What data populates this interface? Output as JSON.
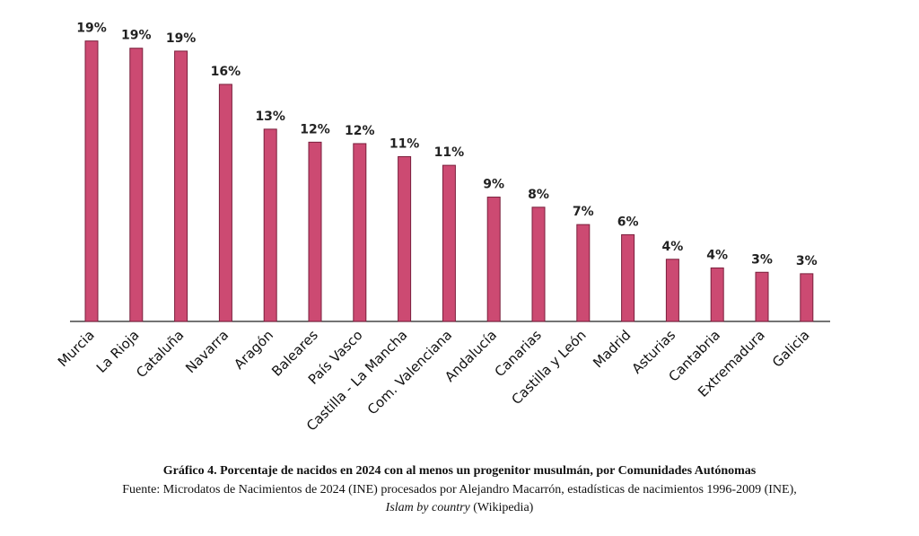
{
  "chart_data": {
    "type": "bar",
    "categories": [
      "Murcia",
      "La Rioja",
      "Cataluña",
      "Navarra",
      "Aragón",
      "Baleares",
      "País Vasco",
      "Castilla - La Mancha",
      "Com. Valenciana",
      "Andalucía",
      "Canarias",
      "Castilla y León",
      "Madrid",
      "Asturias",
      "Cantabria",
      "Extremadura",
      "Galicia"
    ],
    "values": [
      19.4,
      18.9,
      18.7,
      16.4,
      13.3,
      12.4,
      12.3,
      11.4,
      10.8,
      8.6,
      7.9,
      6.7,
      6.0,
      4.3,
      3.7,
      3.4,
      3.3
    ],
    "value_labels": [
      "19%",
      "19%",
      "19%",
      "16%",
      "13%",
      "12%",
      "12%",
      "11%",
      "11%",
      "9%",
      "8%",
      "7%",
      "6%",
      "4%",
      "4%",
      "3%",
      "3%"
    ],
    "color": "#cc4a72",
    "caption": {
      "title": "Gráfico 4. Porcentaje de nacidos en 2024 con al menos un progenitor musulmán, por Comunidades Autónomas",
      "source_line1": "Fuente: Microdatos de Nacimientos de 2024 (INE) procesados por Alejandro Macarrón, estadísticas de nacimientos 1996-2009 (INE),",
      "source_italic": "Islam by country",
      "source_rest": "(Wikipedia)"
    }
  }
}
